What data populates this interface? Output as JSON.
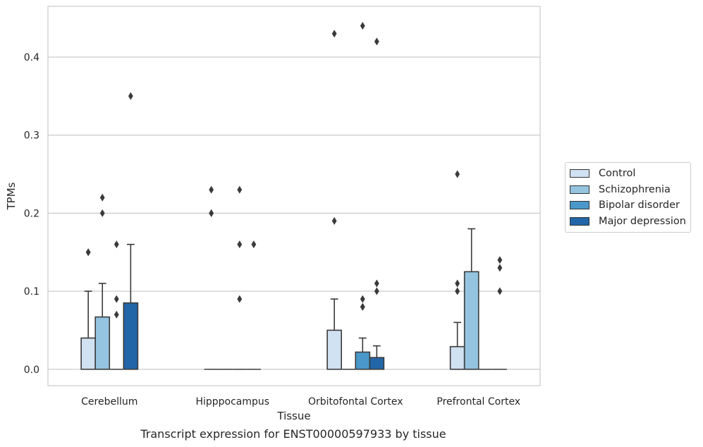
{
  "caption": "Transcript expression for ENST00000597933 by tissue",
  "chart_data": {
    "type": "box",
    "xlabel": "Tissue",
    "ylabel": "TPMs",
    "ylim": [
      -0.021,
      0.465
    ],
    "yticks": [
      "0.0",
      "0.1",
      "0.2",
      "0.3",
      "0.4"
    ],
    "grid": "horizontal",
    "legend_position": "right",
    "categories": [
      "Cerebellum",
      "Hipppocampus",
      "Orbitofontal Cortex",
      "Prefrontal Cortex"
    ],
    "series": [
      {
        "name": "Control",
        "color": "#d0e1f2",
        "boxes": [
          {
            "q1": 0.0,
            "median": 0.0,
            "q3": 0.04,
            "whisker_low": 0.0,
            "whisker_high": 0.1,
            "outliers": [
              0.15,
              0.15
            ]
          },
          {
            "q1": 0.0,
            "median": 0.0,
            "q3": 0.0,
            "whisker_low": 0.0,
            "whisker_high": 0.0,
            "outliers": [
              0.2,
              0.2,
              0.23
            ]
          },
          {
            "q1": 0.0,
            "median": 0.0,
            "q3": 0.05,
            "whisker_low": 0.0,
            "whisker_high": 0.09,
            "outliers": [
              0.19,
              0.43
            ]
          },
          {
            "q1": 0.0,
            "median": 0.0,
            "q3": 0.029,
            "whisker_low": 0.0,
            "whisker_high": 0.06,
            "outliers": [
              0.1,
              0.11,
              0.25
            ]
          }
        ]
      },
      {
        "name": "Schizophrenia",
        "color": "#94c4df",
        "boxes": [
          {
            "q1": 0.0,
            "median": 0.0,
            "q3": 0.067,
            "whisker_low": 0.0,
            "whisker_high": 0.11,
            "outliers": [
              0.2,
              0.22
            ]
          },
          {
            "q1": 0.0,
            "median": 0.0,
            "q3": 0.0,
            "whisker_low": 0.0,
            "whisker_high": 0.0,
            "outliers": []
          },
          {
            "q1": 0.0,
            "median": 0.0,
            "q3": 0.0,
            "whisker_low": 0.0,
            "whisker_high": 0.0,
            "outliers": []
          },
          {
            "q1": 0.0,
            "median": 0.0,
            "q3": 0.125,
            "whisker_low": 0.0,
            "whisker_high": 0.18,
            "outliers": []
          }
        ]
      },
      {
        "name": "Bipolar disorder",
        "color": "#4a98c9",
        "boxes": [
          {
            "q1": 0.0,
            "median": 0.0,
            "q3": 0.0,
            "whisker_low": 0.0,
            "whisker_high": 0.0,
            "outliers": [
              0.07,
              0.09,
              0.16
            ]
          },
          {
            "q1": 0.0,
            "median": 0.0,
            "q3": 0.0,
            "whisker_low": 0.0,
            "whisker_high": 0.0,
            "outliers": [
              0.09,
              0.16,
              0.23
            ]
          },
          {
            "q1": 0.0,
            "median": 0.0,
            "q3": 0.022,
            "whisker_low": 0.0,
            "whisker_high": 0.04,
            "outliers": [
              0.08,
              0.08,
              0.09,
              0.44
            ]
          },
          {
            "q1": 0.0,
            "median": 0.0,
            "q3": 0.0,
            "whisker_low": 0.0,
            "whisker_high": 0.0,
            "outliers": []
          }
        ]
      },
      {
        "name": "Major depression",
        "color": "#2366a8",
        "boxes": [
          {
            "q1": 0.0,
            "median": 0.0,
            "q3": 0.085,
            "whisker_low": 0.0,
            "whisker_high": 0.16,
            "outliers": [
              0.35
            ]
          },
          {
            "q1": 0.0,
            "median": 0.0,
            "q3": 0.0,
            "whisker_low": 0.0,
            "whisker_high": 0.0,
            "outliers": [
              0.16
            ]
          },
          {
            "q1": 0.0,
            "median": 0.0,
            "q3": 0.015,
            "whisker_low": 0.0,
            "whisker_high": 0.03,
            "outliers": [
              0.1,
              0.11,
              0.42
            ]
          },
          {
            "q1": 0.0,
            "median": 0.0,
            "q3": 0.0,
            "whisker_low": 0.0,
            "whisker_high": 0.0,
            "outliers": [
              0.1,
              0.13,
              0.14
            ]
          }
        ]
      }
    ]
  }
}
